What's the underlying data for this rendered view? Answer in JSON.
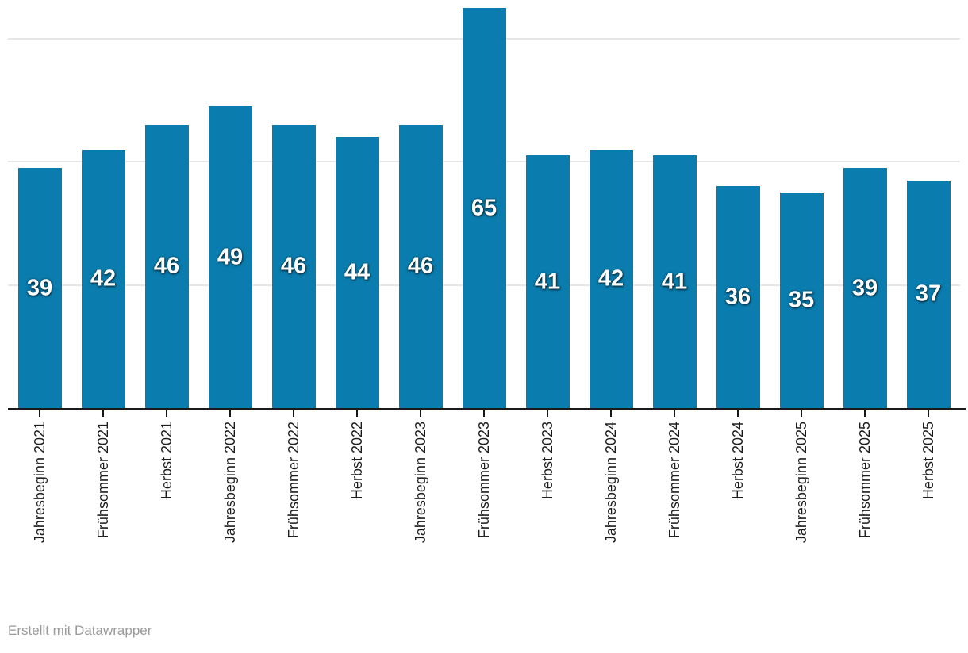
{
  "chart_data": {
    "type": "bar",
    "title": "",
    "xlabel": "",
    "ylabel": "",
    "categories": [
      "Jahresbeginn 2021",
      "Frühsommer 2021",
      "Herbst 2021",
      "Jahresbeginn 2022",
      "Frühsommer 2022",
      "Herbst 2022",
      "Jahresbeginn 2023",
      "Frühsommer 2023",
      "Herbst 2023",
      "Jahresbeginn 2024",
      "Frühsommer 2024",
      "Herbst 2024",
      "Jahresbeginn 2025",
      "Frühsommer 2025",
      "Herbst 2025"
    ],
    "values": [
      39,
      42,
      46,
      49,
      46,
      44,
      46,
      65,
      41,
      42,
      41,
      36,
      35,
      39,
      37
    ],
    "ylim": [
      0,
      66
    ],
    "gridline_values": [
      20,
      40,
      60
    ],
    "grid": "horizontal-unlabeled",
    "legend_position": "none",
    "value_labels": "inside-bar-centered",
    "colors": {
      "bar": "#0a7cad",
      "value_label": "#ffffff",
      "axis": "#1a1a1a",
      "tick_label": "#1d1d1d",
      "gridline": "#e6e6e6"
    }
  },
  "footer": {
    "credit": "Erstellt mit Datawrapper",
    "color": "#9a9a9a"
  }
}
